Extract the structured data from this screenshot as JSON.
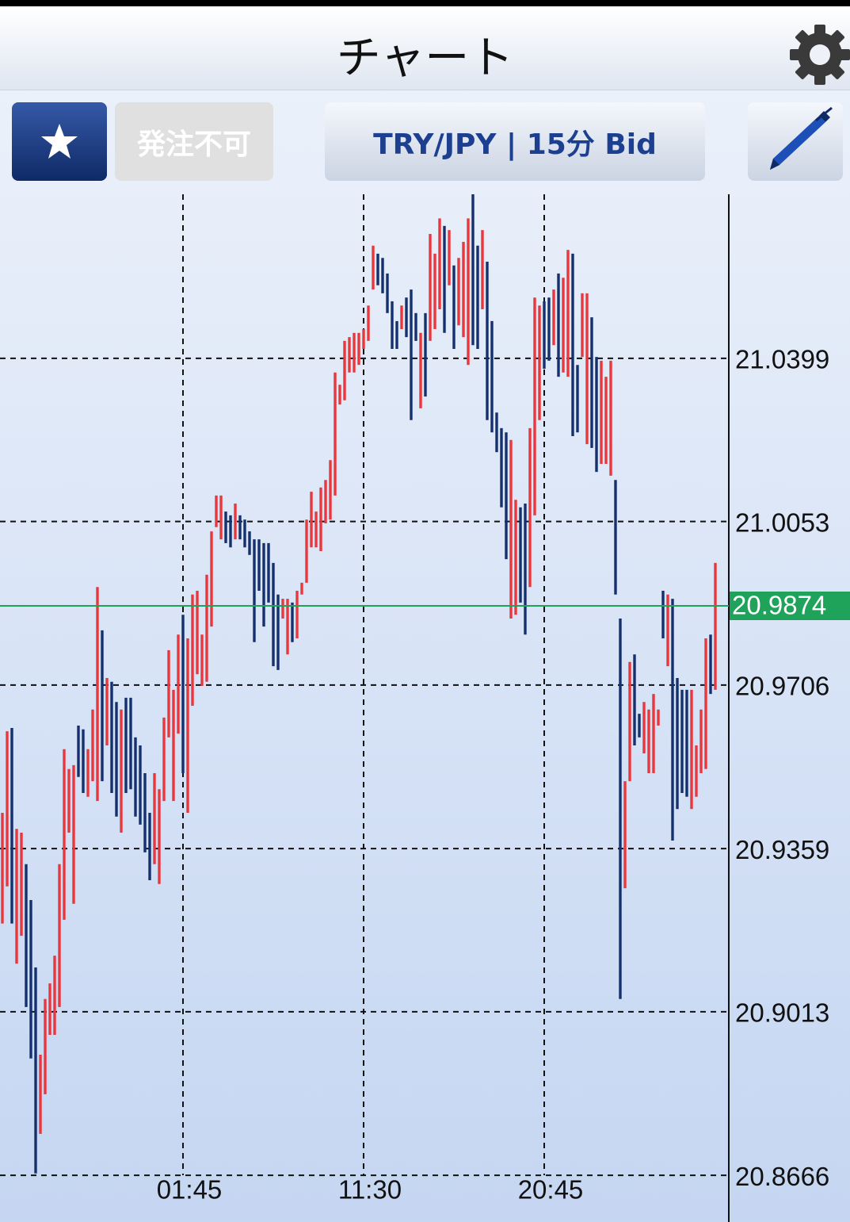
{
  "header": {
    "title": "チャート"
  },
  "toolbar": {
    "status": "発注不可",
    "symbol": "TRY/JPY | 15分 Bid"
  },
  "chart_data": {
    "type": "range-bar",
    "categories": [
      null,
      null,
      null,
      null,
      null,
      null,
      null,
      null,
      null,
      null,
      null,
      null,
      null,
      null,
      null,
      null,
      null,
      null,
      null,
      null,
      null,
      null,
      null,
      null,
      null,
      null,
      null,
      null,
      null,
      null,
      null,
      null,
      null,
      null,
      null,
      null,
      null,
      null,
      "01:45",
      null,
      null,
      null,
      null,
      null,
      null,
      null,
      null,
      null,
      null,
      null,
      null,
      null,
      null,
      null,
      null,
      null,
      null,
      null,
      null,
      null,
      null,
      null,
      null,
      null,
      null,
      null,
      null,
      null,
      null,
      null,
      null,
      null,
      null,
      null,
      null,
      null,
      "11:30",
      null,
      null,
      null,
      null,
      null,
      null,
      null,
      null,
      null,
      null,
      null,
      null,
      null,
      null,
      null,
      null,
      null,
      null,
      null,
      null,
      null,
      null,
      null,
      null,
      null,
      null,
      null,
      null,
      null,
      null,
      null,
      null,
      null,
      null,
      null,
      null,
      null,
      "20:45",
      null,
      null,
      null,
      null,
      null,
      null,
      null,
      null,
      null,
      null,
      null,
      null,
      null,
      null,
      null,
      null,
      null,
      null,
      null,
      null,
      null,
      null,
      null,
      null,
      null,
      null,
      null,
      null,
      null,
      null,
      null,
      null,
      null,
      null,
      null,
      null
    ],
    "high": [
      20.9435,
      20.9608,
      20.9615,
      20.9401,
      20.9393,
      20.9326,
      20.925,
      20.9107,
      20.8922,
      20.904,
      20.9073,
      20.9132,
      20.9326,
      20.957,
      20.9528,
      20.9536,
      20.962,
      20.9612,
      20.957,
      20.9654,
      20.9914,
      20.9822,
      20.9721,
      20.9713,
      20.967,
      20.9654,
      20.9679,
      20.9679,
      20.9595,
      20.9578,
      20.9519,
      20.9435,
      20.9519,
      20.9485,
      20.9637,
      20.978,
      20.9696,
      20.9813,
      20.9855,
      20.9805,
      20.9898,
      20.9906,
      20.9813,
      20.994,
      21.0032,
      21.0108,
      21.0108,
      21.0074,
      21.0066,
      21.0091,
      21.0066,
      21.0057,
      21.0032,
      21.0015,
      21.0015,
      21.0007,
      21.0007,
      20.9965,
      20.9898,
      20.9889,
      20.9889,
      20.9881,
      20.9906,
      20.9923,
      21.0057,
      21.0116,
      21.0074,
      21.0125,
      21.0141,
      21.0183,
      21.0369,
      21.0343,
      21.0436,
      21.0444,
      21.0453,
      21.0453,
      21.0461,
      21.0511,
      21.0638,
      21.0621,
      21.0612,
      21.0579,
      21.052,
      21.0478,
      21.0511,
      21.0528,
      21.0545,
      21.0495,
      21.0453,
      21.0495,
      21.0663,
      21.0621,
      21.0696,
      21.068,
      21.0671,
      21.0596,
      21.0612,
      21.0646,
      21.0696,
      21.0747,
      21.0638,
      21.0671,
      21.0604,
      21.0478,
      21.0284,
      21.0251,
      21.0242,
      21.0226,
      21.0099,
      21.0083,
      21.0091,
      21.0251,
      21.0528,
      21.0511,
      21.052,
      21.0528,
      21.0545,
      21.0579,
      21.057,
      21.0629,
      21.0621,
      21.0385,
      21.0537,
      21.0537,
      21.0486,
      21.0402,
      21.0394,
      21.036,
      21.0394,
      21.0141,
      20.9847,
      20.9502,
      20.9755,
      20.9771,
      20.9645,
      20.967,
      20.9654,
      20.9687,
      20.9654,
      20.9906,
      20.9898,
      20.9889,
      20.9721,
      20.9696,
      20.9696,
      20.9696,
      20.9578,
      20.9654,
      20.9805,
      20.9813,
      20.9965
    ],
    "low": [
      20.92,
      20.9279,
      20.92,
      20.9115,
      20.9174,
      20.9023,
      20.8914,
      20.867,
      20.8754,
      20.8838,
      20.8964,
      20.8964,
      20.9023,
      20.9208,
      20.9393,
      20.9242,
      20.9511,
      20.9477,
      20.9469,
      20.9502,
      20.946,
      20.9502,
      20.9578,
      20.9477,
      20.9427,
      20.9393,
      20.9477,
      20.9485,
      20.9427,
      20.941,
      20.9351,
      20.9292,
      20.9326,
      20.9284,
      20.946,
      20.9595,
      20.946,
      20.9603,
      20.9519,
      20.9435,
      20.9662,
      20.9729,
      20.9704,
      20.9713,
      20.983,
      21.0041,
      21.0015,
      21.0007,
      20.9998,
      21.0015,
      21.0015,
      20.9998,
      20.9982,
      20.9797,
      20.9906,
      20.983,
      20.9881,
      20.9746,
      20.9738,
      20.9847,
      20.9771,
      20.9797,
      20.9805,
      20.9898,
      20.9923,
      20.9998,
      20.9998,
      20.999,
      21.0049,
      21.0057,
      21.0108,
      21.0301,
      21.031,
      21.0369,
      21.0369,
      21.0385,
      21.0419,
      21.0436,
      21.0545,
      21.0554,
      21.0537,
      21.0495,
      21.0419,
      21.0419,
      21.0461,
      21.0444,
      21.0268,
      21.0436,
      21.0293,
      21.0318,
      21.0436,
      21.0461,
      21.0503,
      21.0453,
      21.0554,
      21.0419,
      21.0469,
      21.0444,
      21.0385,
      21.0427,
      21.0419,
      21.0503,
      21.0268,
      21.0242,
      21.02,
      21.0083,
      20.9973,
      20.9847,
      20.9855,
      20.9881,
      20.9813,
      20.9914,
      21.0066,
      21.0268,
      21.0377,
      21.0394,
      21.0427,
      21.036,
      21.0369,
      21.036,
      21.0234,
      21.0242,
      21.0402,
      21.0217,
      21.0209,
      21.0158,
      21.0175,
      21.0175,
      21.015,
      20.9898,
      20.904,
      20.9275,
      20.9502,
      20.9578,
      20.9595,
      20.9561,
      20.9519,
      20.9519,
      20.962,
      20.9805,
      20.9746,
      20.9376,
      20.9443,
      20.9477,
      20.9469,
      20.9443,
      20.9469,
      20.9519,
      20.9528,
      20.9687,
      20.9696
    ],
    "up": [
      true,
      true,
      false,
      true,
      true,
      false,
      false,
      false,
      true,
      true,
      true,
      true,
      true,
      true,
      true,
      true,
      false,
      false,
      true,
      true,
      true,
      false,
      true,
      false,
      false,
      true,
      false,
      false,
      false,
      false,
      false,
      false,
      true,
      true,
      true,
      true,
      true,
      true,
      false,
      true,
      true,
      true,
      true,
      true,
      true,
      true,
      true,
      false,
      false,
      true,
      false,
      false,
      false,
      false,
      false,
      false,
      false,
      false,
      false,
      true,
      true,
      false,
      true,
      true,
      true,
      true,
      true,
      true,
      true,
      true,
      true,
      true,
      true,
      true,
      true,
      true,
      true,
      true,
      true,
      false,
      false,
      false,
      false,
      false,
      true,
      false,
      false,
      false,
      true,
      false,
      true,
      true,
      true,
      false,
      true,
      false,
      true,
      true,
      true,
      false,
      false,
      true,
      false,
      false,
      false,
      false,
      false,
      true,
      true,
      false,
      false,
      true,
      true,
      true,
      false,
      false,
      true,
      false,
      true,
      true,
      false,
      false,
      true,
      true,
      false,
      false,
      true,
      true,
      true,
      false,
      false,
      true,
      true,
      false,
      false,
      true,
      true,
      true,
      true,
      false,
      true,
      false,
      false,
      false,
      false,
      true,
      true,
      true,
      true,
      false,
      true
    ],
    "up_color": "#e8383d",
    "down_color": "#14306e",
    "current_price": 20.9874,
    "current_color": "#1fa25a",
    "ylim": [
      20.8567,
      21.0747
    ],
    "yticks": [
      21.0399,
      21.0053,
      20.9706,
      20.9359,
      20.9013,
      20.8666
    ],
    "grid": true
  }
}
